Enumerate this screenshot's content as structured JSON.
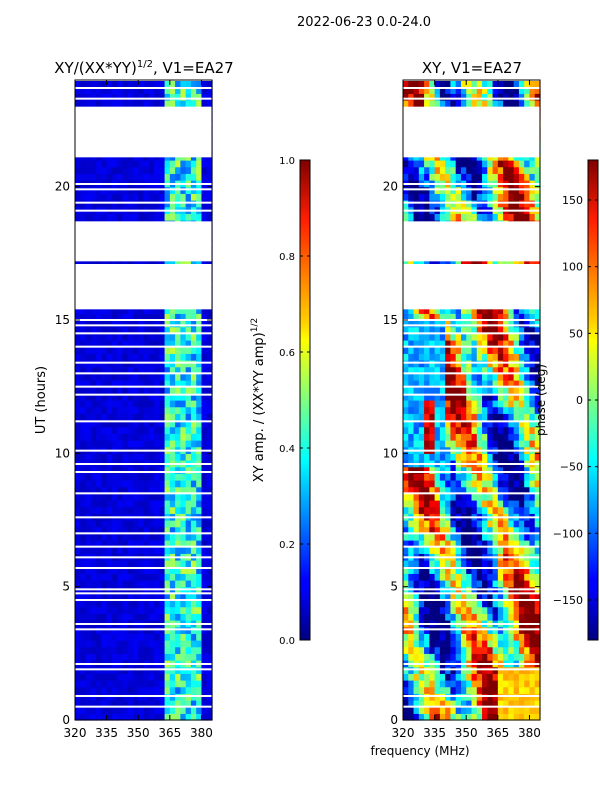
{
  "suptitle": "2022-06-23 0.0-24.0",
  "shared_xlabel": "frequency (MHz)",
  "chart_data": [
    {
      "type": "heatmap",
      "title_main": "XY/(XX*YY)",
      "title_sup": "1/2",
      "title_tail": ", V1=EA27",
      "ylabel": "UT (hours)",
      "xlim": [
        320,
        385
      ],
      "ylim": [
        0,
        24
      ],
      "xticks": [
        320,
        335,
        350,
        365,
        380
      ],
      "yticks": [
        0,
        5,
        10,
        15,
        20
      ],
      "colorbar": {
        "label_main": "XY amp. / (XX*YY amp)",
        "label_sup": "1/2",
        "range": [
          0.0,
          1.0
        ],
        "ticks": [
          "0.0",
          "0.2",
          "0.4",
          "0.6",
          "0.8",
          "1.0"
        ],
        "tick_values": [
          0.0,
          0.2,
          0.4,
          0.6,
          0.8,
          1.0
        ]
      },
      "baseline_value": 0.05,
      "bright_band_mhz": [
        362,
        380
      ],
      "bright_value": 0.45,
      "flagged_blocks_hours": [
        [
          21.1,
          23.0
        ],
        [
          17.2,
          18.7
        ],
        [
          15.4,
          17.1
        ]
      ]
    },
    {
      "type": "heatmap",
      "title": "XY, V1=EA27",
      "ylabel": "",
      "xlim": [
        320,
        385
      ],
      "ylim": [
        0,
        24
      ],
      "xticks": [
        320,
        335,
        350,
        365,
        380
      ],
      "yticks": [
        0,
        5,
        10,
        15,
        20
      ],
      "colorbar": {
        "label": "phase (deg)",
        "range": [
          -180,
          180
        ],
        "ticks": [
          "−150",
          "−100",
          "−50",
          "0",
          "50",
          "100",
          "150"
        ],
        "tick_values": [
          -150,
          -100,
          -50,
          0,
          50,
          100,
          150
        ]
      },
      "flagged_blocks_hours": [
        [
          21.1,
          23.0
        ],
        [
          17.2,
          18.7
        ],
        [
          15.4,
          17.1
        ]
      ]
    }
  ]
}
